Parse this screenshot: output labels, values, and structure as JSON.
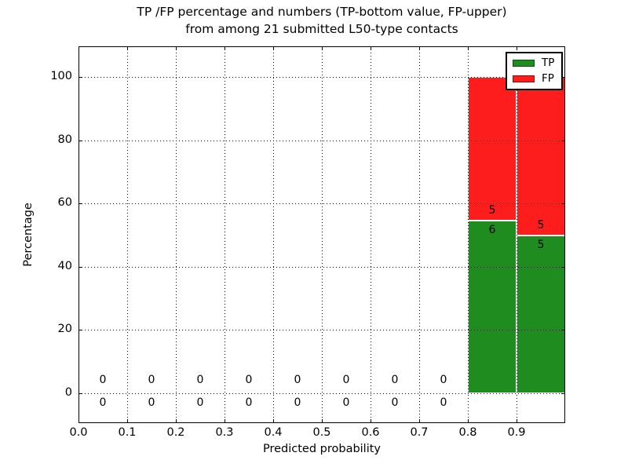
{
  "figure": {
    "title_line1": "TP /FP percentage and numbers (TP-bottom value, FP-upper)",
    "title_line2": "from among 21 submitted L50-type contacts"
  },
  "axes": {
    "xlabel": "Predicted probability",
    "ylabel": "Percentage",
    "x_ticks": [
      "0.0",
      "0.1",
      "0.2",
      "0.3",
      "0.4",
      "0.5",
      "0.6",
      "0.7",
      "0.8",
      "0.9"
    ],
    "y_ticks": [
      0,
      20,
      40,
      60,
      80,
      100
    ],
    "xlim": [
      0.0,
      1.0
    ],
    "ylim": [
      -10,
      110
    ],
    "grid_style": "dotted",
    "grid_color": "#000000"
  },
  "legend": {
    "position": "upper right",
    "items": [
      {
        "label": "TP",
        "color": "#1e8c1e"
      },
      {
        "label": "FP",
        "color": "#fd1d1d"
      }
    ]
  },
  "chart_data": {
    "type": "bar",
    "stacked": true,
    "title": "TP /FP percentage and numbers (TP-bottom value, FP-upper) from among 21 submitted L50-type contacts",
    "xlabel": "Predicted probability",
    "ylabel": "Percentage",
    "xlim": [
      0,
      1
    ],
    "ylim": [
      -10,
      110
    ],
    "grid": true,
    "legend_position": "upper right",
    "bin_starts": [
      0.0,
      0.1,
      0.2,
      0.3,
      0.4,
      0.5,
      0.6,
      0.7,
      0.8,
      0.9
    ],
    "bin_width": 0.1,
    "annotation_note": "TP-bottom value, FP-upper",
    "total_contacts": 21,
    "series": [
      {
        "name": "TP",
        "color": "#1e8c1e",
        "counts": [
          0,
          0,
          0,
          0,
          0,
          0,
          0,
          0,
          6,
          5
        ],
        "percent": [
          0,
          0,
          0,
          0,
          0,
          0,
          0,
          0,
          54.5,
          50
        ]
      },
      {
        "name": "FP",
        "color": "#fd1d1d",
        "counts": [
          0,
          0,
          0,
          0,
          0,
          0,
          0,
          0,
          5,
          5
        ],
        "percent": [
          0,
          0,
          0,
          0,
          0,
          0,
          0,
          0,
          45.5,
          50
        ]
      }
    ]
  }
}
